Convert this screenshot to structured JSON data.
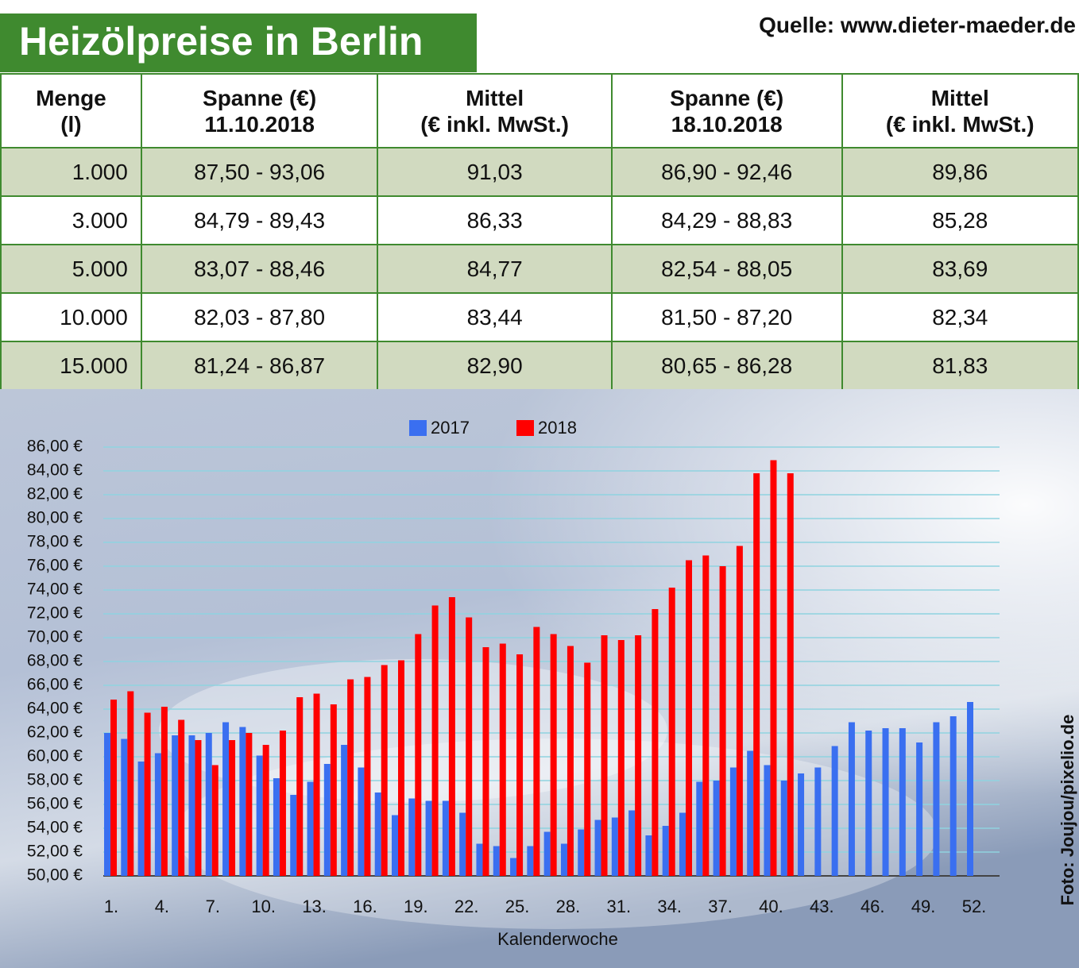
{
  "header": {
    "title": "Heizölpreise in Berlin",
    "source": "Quelle: www.dieter-maeder.de"
  },
  "table": {
    "headers": [
      "Menge\n(l)",
      "Spanne (€)\n11.10.2018",
      "Mittel\n(€ inkl. MwSt.)",
      "Spanne (€)\n18.10.2018",
      "Mittel\n(€ inkl. MwSt.)"
    ],
    "rows": [
      [
        "1.000",
        "87,50 - 93,06",
        "91,03",
        "86,90 - 92,46",
        "89,86"
      ],
      [
        "3.000",
        "84,79 - 89,43",
        "86,33",
        "84,29 - 88,83",
        "85,28"
      ],
      [
        "5.000",
        "83,07 - 88,46",
        "84,77",
        "82,54 - 88,05",
        "83,69"
      ],
      [
        "10.000",
        "82,03 - 87,80",
        "83,44",
        "81,50 - 87,20",
        "82,34"
      ],
      [
        "15.000",
        "81,24 - 86,87",
        "82,90",
        "80,65 - 86,28",
        "81,83"
      ]
    ]
  },
  "chart_data": {
    "type": "bar",
    "xlabel": "Kalenderwoche",
    "credit": "Foto: Joujou/pixelio.de",
    "legend": "top",
    "grid": true,
    "categories": [
      "1.",
      null,
      null,
      "4.",
      null,
      null,
      "7.",
      null,
      null,
      "10.",
      null,
      null,
      "13.",
      null,
      null,
      "16.",
      null,
      null,
      "19.",
      null,
      null,
      "22.",
      null,
      null,
      "25.",
      null,
      null,
      "28.",
      null,
      null,
      "31.",
      null,
      null,
      "34.",
      null,
      null,
      "37.",
      null,
      null,
      "40.",
      null,
      null,
      "43.",
      null,
      null,
      "46.",
      null,
      null,
      "49.",
      null,
      null,
      "52."
    ],
    "series": [
      {
        "name": "2017",
        "color": "#3a6ff0",
        "values": [
          62.0,
          61.5,
          59.6,
          60.3,
          61.8,
          61.8,
          62.0,
          62.9,
          62.5,
          60.1,
          58.2,
          56.8,
          57.9,
          59.4,
          61.0,
          59.1,
          57.0,
          55.1,
          56.5,
          56.3,
          56.3,
          55.3,
          52.7,
          52.5,
          51.5,
          52.5,
          53.7,
          52.7,
          53.9,
          54.7,
          54.9,
          55.5,
          53.4,
          54.2,
          55.3,
          57.9,
          58.0,
          59.1,
          60.5,
          59.3,
          58.0,
          58.6,
          59.1,
          60.9,
          62.9,
          62.2,
          62.4,
          62.4,
          61.2,
          62.9,
          63.4,
          64.6
        ]
      },
      {
        "name": "2018",
        "color": "#ff0000",
        "values": [
          64.8,
          65.5,
          63.7,
          64.2,
          63.1,
          61.4,
          59.3,
          61.4,
          62.0,
          61.0,
          62.2,
          65.0,
          65.3,
          64.4,
          66.5,
          66.7,
          67.7,
          68.1,
          70.3,
          72.7,
          73.4,
          71.7,
          69.2,
          69.5,
          68.6,
          70.9,
          70.3,
          69.3,
          67.9,
          70.2,
          69.8,
          70.2,
          72.4,
          74.2,
          76.5,
          76.9,
          76.0,
          77.7,
          83.8,
          84.9,
          83.8,
          null,
          null,
          null,
          null,
          null,
          null,
          null,
          null,
          null,
          null,
          null
        ]
      }
    ],
    "ylim": [
      50,
      86
    ],
    "yticks": [
      {
        "value": 50,
        "label": "50,00 €"
      },
      {
        "value": 52,
        "label": "52,00 €"
      },
      {
        "value": 54,
        "label": "54,00 €"
      },
      {
        "value": 56,
        "label": "56,00 €"
      },
      {
        "value": 58,
        "label": "58,00 €"
      },
      {
        "value": 60,
        "label": "60,00 €"
      },
      {
        "value": 62,
        "label": "62,00 €"
      },
      {
        "value": 64,
        "label": "64,00 €"
      },
      {
        "value": 66,
        "label": "66,00 €"
      },
      {
        "value": 68,
        "label": "68,00 €"
      },
      {
        "value": 70,
        "label": "70,00 €"
      },
      {
        "value": 72,
        "label": "72,00 €"
      },
      {
        "value": 74,
        "label": "74,00 €"
      },
      {
        "value": 76,
        "label": "76,00 €"
      },
      {
        "value": 78,
        "label": "78,00 €"
      },
      {
        "value": 80,
        "label": "80,00 €"
      },
      {
        "value": 82,
        "label": "82,00 €"
      },
      {
        "value": 84,
        "label": "84,00 €"
      },
      {
        "value": 86,
        "label": "86,00 €"
      }
    ]
  }
}
